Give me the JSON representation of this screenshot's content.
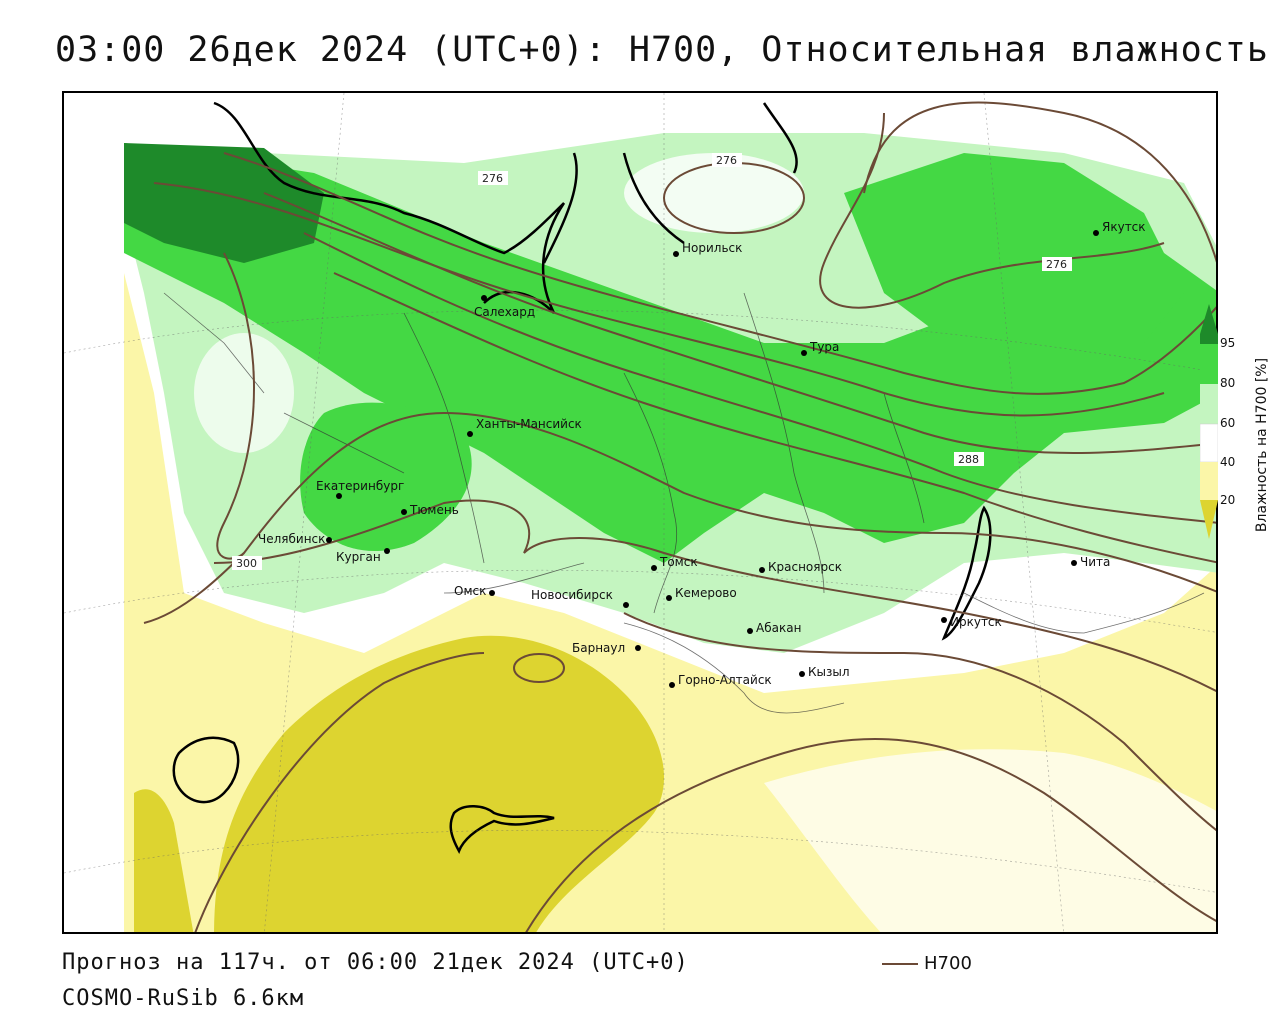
{
  "header": {
    "title": "03:00 26дек 2024 (UTC+0): H700, Относительная влажность"
  },
  "footer": {
    "forecast": "Прогноз на 117ч. от 06:00 21дек 2024 (UTC+0)",
    "model": "COSMO-RuSib 6.6км",
    "legend_label": "H700",
    "legend_color": "#6b4a36"
  },
  "colorbar": {
    "title": "Влажность на H700 [%]",
    "ticks": [
      "95",
      "80",
      "60",
      "40",
      "20"
    ],
    "colors": {
      "c95": "#1e8a2a",
      "c80": "#44d844",
      "c60": "#c4f5c0",
      "c40": "#ffffff",
      "c20": "#fbf6a8",
      "c0": "#ddd430"
    }
  },
  "cities": [
    {
      "id": "yakutsk",
      "name": "Якутск"
    },
    {
      "id": "norilsk",
      "name": "Норильск"
    },
    {
      "id": "salekhard",
      "name": "Салехард"
    },
    {
      "id": "tura",
      "name": "Тура"
    },
    {
      "id": "khanty",
      "name": "Ханты-Мансийск"
    },
    {
      "id": "ekaterinburg",
      "name": "Екатеринбург"
    },
    {
      "id": "tyumen",
      "name": "Тюмень"
    },
    {
      "id": "chelyabinsk",
      "name": "Челябинск"
    },
    {
      "id": "kurgan",
      "name": "Курган"
    },
    {
      "id": "omsk",
      "name": "Омск"
    },
    {
      "id": "novosibirsk",
      "name": "Новосибирск"
    },
    {
      "id": "tomsk",
      "name": "Томск"
    },
    {
      "id": "kemerovo",
      "name": "Кемерово"
    },
    {
      "id": "krasnoyarsk",
      "name": "Красноярск"
    },
    {
      "id": "barnaul",
      "name": "Барнаул"
    },
    {
      "id": "abakan",
      "name": "Абакан"
    },
    {
      "id": "gorno",
      "name": "Горно-Алтайск"
    },
    {
      "id": "kyzyl",
      "name": "Кызыл"
    },
    {
      "id": "irkutsk",
      "name": "Иркутск"
    },
    {
      "id": "chita",
      "name": "Чита"
    }
  ],
  "isolines": {
    "label_276a": "276",
    "label_276b": "276",
    "label_276c": "276",
    "label_288": "288",
    "label_300": "300"
  }
}
